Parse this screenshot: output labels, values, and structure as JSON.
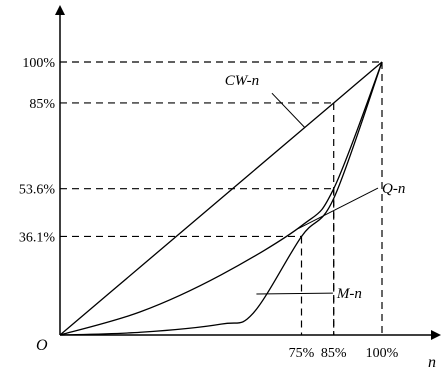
{
  "chart_data": {
    "type": "line",
    "xlabel": "n",
    "origin_label": "O",
    "xlim": [
      0,
      100
    ],
    "ylim": [
      0,
      100
    ],
    "x_ticks": [
      {
        "value": 75,
        "label": "75%"
      },
      {
        "value": 85,
        "label": "85%"
      },
      {
        "value": 100,
        "label": "100%"
      }
    ],
    "y_ticks": [
      {
        "value": 36.1,
        "label": "36.1%"
      },
      {
        "value": 53.6,
        "label": "53.6%"
      },
      {
        "value": 85,
        "label": "85%"
      },
      {
        "value": 100,
        "label": "100%"
      }
    ],
    "series": [
      {
        "name": "CW-n",
        "x": [
          0,
          25,
          50,
          75,
          85,
          100
        ],
        "y": [
          0,
          25,
          50,
          75,
          85,
          100
        ]
      },
      {
        "name": "Q-n",
        "x": [
          0,
          25,
          50,
          75,
          85,
          100
        ],
        "y": [
          0,
          8.5,
          22,
          40,
          53.6,
          100
        ]
      },
      {
        "name": "M-n",
        "x": [
          0,
          25,
          50,
          60,
          75,
          85,
          100
        ],
        "y": [
          0,
          1,
          4,
          8,
          36.1,
          50,
          100
        ]
      }
    ],
    "dashed_guides": [
      {
        "x": 75,
        "y": 36.1
      },
      {
        "x": 85,
        "y": 53.6
      },
      {
        "x": 85,
        "y": 85
      },
      {
        "x": 100,
        "y": 100
      }
    ]
  }
}
